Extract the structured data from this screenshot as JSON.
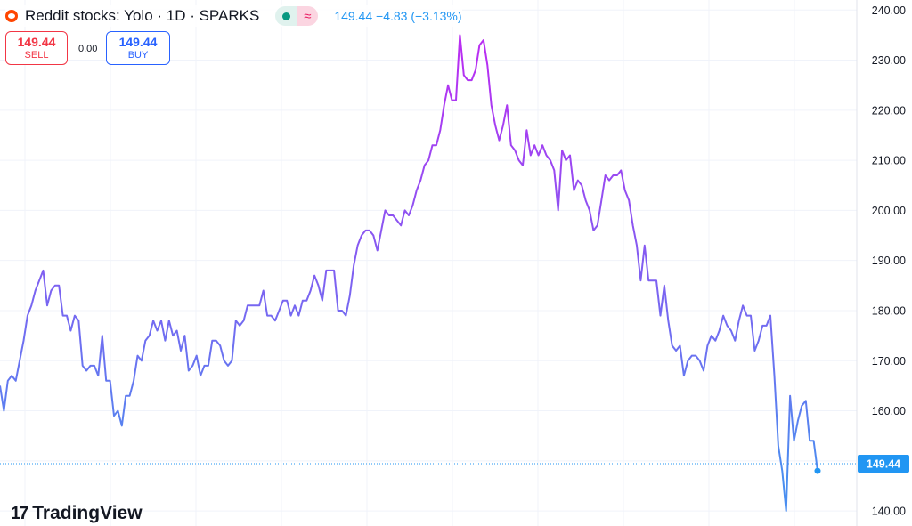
{
  "header": {
    "title": "Reddit stocks: Yolo · 1D · SPARKS",
    "quote": "149.44 −4.83 (−3.13%)",
    "logo_icon": "reddit-alien-icon",
    "status_icon": "market-status-dot-icon",
    "wave_icon": "wave-icon",
    "wave_glyph": "≈"
  },
  "trade": {
    "sell_price": "149.44",
    "sell_label": "SELL",
    "spread": "0.00",
    "buy_price": "149.44",
    "buy_label": "BUY"
  },
  "branding": {
    "mark": "17",
    "name": "TradingView"
  },
  "colors": {
    "line_low": "#4a8ef0",
    "line_high": "#b82ef2",
    "badge": "#2196f3",
    "grid": "#f0f3fa"
  },
  "chart_data": {
    "type": "line",
    "title": "Reddit stocks: Yolo · 1D · SPARKS",
    "y_ticks": [
      "140.00",
      "150.00",
      "160.00",
      "170.00",
      "180.00",
      "190.00",
      "200.00",
      "210.00",
      "220.00",
      "230.00",
      "240.00"
    ],
    "ylim": [
      137,
      242
    ],
    "last_value": 149.44,
    "last_label": "149.44",
    "grid": true,
    "y_axis_position": "right",
    "series": [
      {
        "values": [
          165,
          160,
          166,
          167,
          166,
          170,
          174,
          179,
          181,
          184,
          186,
          188,
          181,
          184,
          185,
          185,
          179,
          179,
          176,
          179,
          178,
          169,
          168,
          169,
          169,
          167,
          175,
          166,
          166,
          159,
          160,
          157,
          163,
          163,
          166,
          171,
          170,
          174,
          175,
          178,
          176,
          178,
          174,
          178,
          175,
          176,
          172,
          175,
          168,
          169,
          171,
          167,
          169,
          169,
          174,
          174,
          173,
          170,
          169,
          170,
          178,
          177,
          178,
          181,
          181,
          181,
          181,
          184,
          179,
          179,
          178,
          180,
          182,
          182,
          179,
          181,
          179,
          182,
          182,
          184,
          187,
          185,
          182,
          188,
          188,
          188,
          180,
          180,
          179,
          183,
          189,
          193,
          195,
          196,
          196,
          195,
          192,
          196,
          200,
          199,
          199,
          198,
          197,
          200,
          199,
          201,
          204,
          206,
          209,
          210,
          213,
          213,
          216,
          221,
          225,
          222,
          222,
          235,
          227,
          226,
          226,
          228,
          233,
          234,
          229,
          221,
          217,
          214,
          217,
          221,
          213,
          212,
          210,
          209,
          216,
          211,
          213,
          211,
          213,
          211,
          210,
          208,
          200,
          212,
          210,
          211,
          204,
          206,
          205,
          202,
          200,
          196,
          197,
          202,
          207,
          206,
          207,
          207,
          208,
          204,
          202,
          197,
          193,
          186,
          193,
          186,
          186,
          186,
          179,
          185,
          178,
          173,
          172,
          173,
          167,
          170,
          171,
          171,
          170,
          168,
          173,
          175,
          174,
          176,
          179,
          177,
          176,
          174,
          178,
          181,
          179,
          179,
          172,
          174,
          177,
          177,
          179,
          167,
          153,
          148,
          140,
          163,
          154,
          158,
          161,
          162,
          154,
          154,
          148
        ]
      }
    ]
  }
}
